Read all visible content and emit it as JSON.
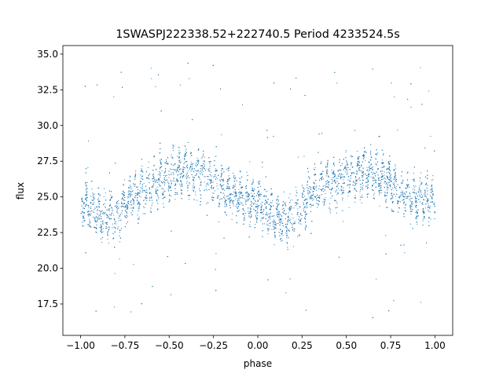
{
  "chart_data": {
    "type": "scatter",
    "title": "1SWASPJ222338.52+222740.5 Period 4233524.5s",
    "xlabel": "phase",
    "ylabel": "flux",
    "xlim": [
      -1.1,
      1.1
    ],
    "ylim": [
      15.3,
      35.6
    ],
    "grid": false,
    "x_ticks": [
      -1.0,
      -0.75,
      -0.5,
      -0.25,
      0.0,
      0.25,
      0.5,
      0.75,
      1.0
    ],
    "x_tick_labels": [
      "−1.00",
      "−0.75",
      "−0.50",
      "−0.25",
      "0.00",
      "0.25",
      "0.50",
      "0.75",
      "1.00"
    ],
    "y_ticks": [
      17.5,
      20.0,
      22.5,
      25.0,
      27.5,
      30.0,
      32.5,
      35.0
    ],
    "y_tick_labels": [
      "17.5",
      "20.0",
      "22.5",
      "25.0",
      "27.5",
      "30.0",
      "32.5",
      "35.0"
    ],
    "series": [
      {
        "color": "#1f77b4",
        "profile": {
          "phase": [
            -1.0,
            -0.9,
            -0.8,
            -0.7,
            -0.6,
            -0.5,
            -0.4,
            -0.3,
            -0.2,
            -0.1,
            0.0,
            0.1,
            0.2,
            0.3,
            0.4,
            0.5,
            0.6,
            0.7,
            0.8,
            0.9,
            1.0
          ],
          "flux": [
            24.8,
            23.8,
            23.5,
            25.2,
            25.8,
            26.5,
            26.8,
            26.5,
            25.6,
            24.9,
            24.5,
            23.5,
            23.6,
            25.2,
            25.8,
            26.4,
            26.8,
            26.4,
            25.4,
            24.9,
            24.6
          ]
        },
        "spread": 1.8,
        "outlier_range": [
          16.5,
          34.5
        ]
      }
    ]
  }
}
